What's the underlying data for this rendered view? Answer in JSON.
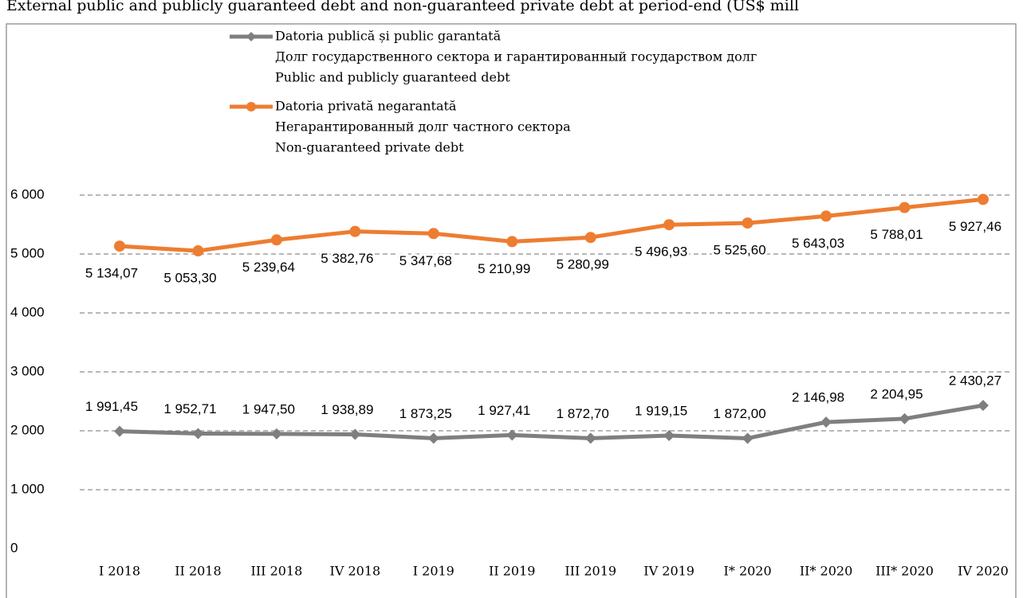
{
  "chart_data": {
    "type": "line",
    "title": "External public and publicly guaranteed debt and non-guaranteed private debt at period-end (US$ mill",
    "categories": [
      "I 2018",
      "II 2018",
      "III 2018",
      "IV 2018",
      "I 2019",
      "II 2019",
      "III 2019",
      "IV 2019",
      "I* 2020",
      "II* 2020",
      "III* 2020",
      "IV 2020"
    ],
    "series": [
      {
        "name": [
          "Datoria publică și public garantată",
          "Долг государственного сектора и гарантированный государством долг",
          "Public and publicly guaranteed debt"
        ],
        "color": "#7f7f7f",
        "marker": "diamond",
        "values": [
          1991.45,
          1952.71,
          1947.5,
          1938.89,
          1873.25,
          1927.41,
          1872.7,
          1919.15,
          1872.0,
          2146.98,
          2204.95,
          2430.27
        ],
        "value_labels": [
          "1 991,45",
          "1 952,71",
          "1 947,50",
          "1 938,89",
          "1 873,25",
          "1 927,41",
          "1 872,70",
          "1 919,15",
          "1 872,00",
          "2 146,98",
          "2 204,95",
          "2 430,27"
        ]
      },
      {
        "name": [
          "Datoria privată negarantată",
          "Негарантированный долг частного сектора",
          "Non-guaranteed private debt"
        ],
        "color": "#ed7d31",
        "marker": "circle",
        "values": [
          5134.07,
          5053.3,
          5239.64,
          5382.76,
          5347.68,
          5210.99,
          5280.99,
          5496.93,
          5525.6,
          5643.03,
          5788.01,
          5927.46
        ],
        "value_labels": [
          "5 134,07",
          "5 053,30",
          "5 239,64",
          "5 382,76",
          "5 347,68",
          "5 210,99",
          "5 280,99",
          "5 496,93",
          "5 525,60",
          "5 643,03",
          "5 788,01",
          "5 927,46"
        ]
      }
    ],
    "ylim": [
      0,
      6000
    ],
    "yticks": [
      0,
      {
        "value": 1000,
        "label": "1 000"
      },
      {
        "value": 2000,
        "label": "2 000"
      },
      {
        "value": 3000,
        "label": "3 000"
      },
      {
        "value": 4000,
        "label": "4 000"
      },
      {
        "value": 5000,
        "label": "5 000"
      },
      {
        "value": 6000,
        "label": "6 000"
      }
    ],
    "grid": true
  }
}
